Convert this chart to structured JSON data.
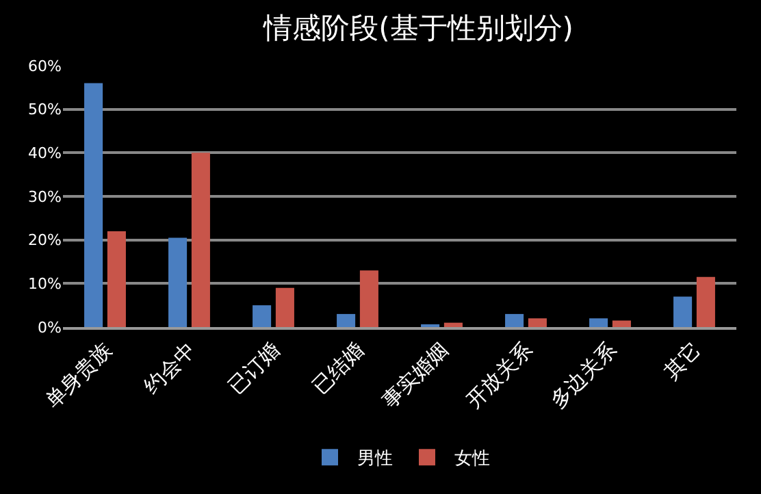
{
  "chart_data": {
    "type": "bar",
    "title": "情感阶段(基于性别划分)",
    "categories": [
      "单身贵族",
      "约会中",
      "已订婚",
      "已结婚",
      "事实婚姻",
      "开放关系",
      "多边关系",
      "其它"
    ],
    "series": [
      {
        "name": "男性",
        "color": "#4a7ec0",
        "values": [
          56,
          20.5,
          5,
          3,
          0.5,
          3,
          2,
          7
        ]
      },
      {
        "name": "女性",
        "color": "#c8554a",
        "values": [
          22,
          40,
          9,
          13,
          1,
          2,
          1.5,
          11.5
        ]
      }
    ],
    "ylim": [
      0,
      60
    ],
    "yticks": [
      {
        "value": 0,
        "label": "0%"
      },
      {
        "value": 10,
        "label": "10%"
      },
      {
        "value": 20,
        "label": "20%"
      },
      {
        "value": 30,
        "label": "30%"
      },
      {
        "value": 40,
        "label": "40%"
      },
      {
        "value": 50,
        "label": "50%"
      },
      {
        "value": 60,
        "label": "60%"
      }
    ],
    "grid": "y",
    "legend": "bottom"
  }
}
